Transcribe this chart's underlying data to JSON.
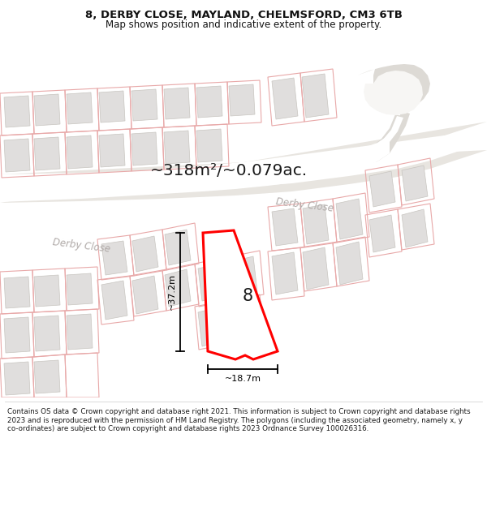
{
  "title_line1": "8, DERBY CLOSE, MAYLAND, CHELMSFORD, CM3 6TB",
  "title_line2": "Map shows position and indicative extent of the property.",
  "area_text": "~318m²/~0.079ac.",
  "street_label_upper": "Derby Close",
  "street_label_lower": "Derby Close",
  "number_label": "8",
  "dim_width": "~18.7m",
  "dim_height": "~37.2m",
  "footer_text": "Contains OS data © Crown copyright and database right 2021. This information is subject to Crown copyright and database rights 2023 and is reproduced with the permission of HM Land Registry. The polygons (including the associated geometry, namely x, y co-ordinates) are subject to Crown copyright and database rights 2023 Ordnance Survey 100026316.",
  "map_bg": "#f7f6f4",
  "road_fill": "#e8e5e0",
  "road_center_fill": "#ffffff",
  "building_fill": "#e0dedd",
  "building_edge": "#c8c5c0",
  "plot_edge": "#e8a8a8",
  "highlight_color": "#ff0000",
  "highlight_fill": "#ffffff",
  "street_label_color": "#b0aaa8",
  "dim_color": "#1a1a1a",
  "footer_bg": "#ffffff",
  "title_bg": "#ffffff",
  "area_color": "#1a1a1a"
}
